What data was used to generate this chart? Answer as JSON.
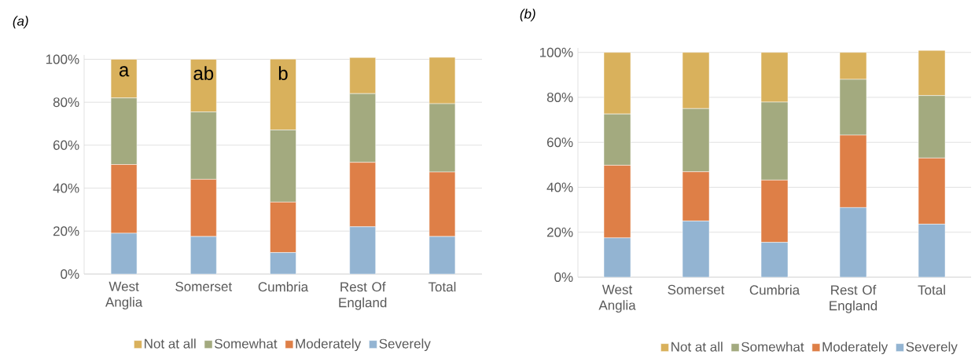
{
  "chart_data": [
    {
      "type": "bar",
      "stacked": true,
      "title": "(a)",
      "categories": [
        "West Anglia",
        "Somerset",
        "Cumbria",
        "Rest Of England",
        "Total"
      ],
      "series": [
        {
          "name": "Severely",
          "color": "#93b4d2",
          "values": [
            19,
            17.5,
            10,
            22,
            17.5
          ]
        },
        {
          "name": "Moderately",
          "color": "#de7f47",
          "values": [
            32,
            26.6,
            23.5,
            30,
            30
          ]
        },
        {
          "name": "Somewhat",
          "color": "#a3aa7f",
          "values": [
            31,
            31.4,
            33.6,
            32,
            31.8
          ]
        },
        {
          "name": "Not at all",
          "color": "#d9b15c",
          "values": [
            18,
            24.5,
            33,
            16.8,
            21.6
          ]
        }
      ],
      "ylim": [
        0,
        102
      ],
      "yticks": [
        {
          "value": 0,
          "label": "0%"
        },
        {
          "value": 20,
          "label": "20%"
        },
        {
          "value": 40,
          "label": "40%"
        },
        {
          "value": 60,
          "label": "60%"
        },
        {
          "value": 80,
          "label": "80%"
        },
        {
          "value": 100,
          "label": "100%"
        }
      ],
      "grid": "y",
      "legend": "bottom",
      "annotations": [
        {
          "text": "a",
          "x": "West Anglia",
          "y": 100
        },
        {
          "text": "ab",
          "x": "Somerset",
          "y": 100
        },
        {
          "text": "b",
          "x": "Cumbria",
          "y": 100
        }
      ]
    },
    {
      "type": "bar",
      "stacked": true,
      "title": "(b)",
      "categories": [
        "West Anglia",
        "Somerset",
        "Cumbria",
        "Rest Of England",
        "Total"
      ],
      "series": [
        {
          "name": "Severely",
          "color": "#93b4d2",
          "values": [
            17.5,
            25,
            15.5,
            31,
            23.6
          ]
        },
        {
          "name": "Moderately",
          "color": "#de7f47",
          "values": [
            32.3,
            21.9,
            27.7,
            32.2,
            29.4
          ]
        },
        {
          "name": "Somewhat",
          "color": "#a3aa7f",
          "values": [
            22.8,
            28.1,
            34.7,
            24.8,
            27.8
          ]
        },
        {
          "name": "Not at all",
          "color": "#d9b15c",
          "values": [
            27.4,
            25,
            22.1,
            12,
            20.1
          ]
        }
      ],
      "ylim": [
        0,
        102
      ],
      "yticks": [
        {
          "value": 0,
          "label": "0%"
        },
        {
          "value": 20,
          "label": "20%"
        },
        {
          "value": 40,
          "label": "40%"
        },
        {
          "value": 60,
          "label": "60%"
        },
        {
          "value": 80,
          "label": "80%"
        },
        {
          "value": 100,
          "label": "100%"
        }
      ],
      "grid": "y",
      "legend": "bottom"
    }
  ]
}
